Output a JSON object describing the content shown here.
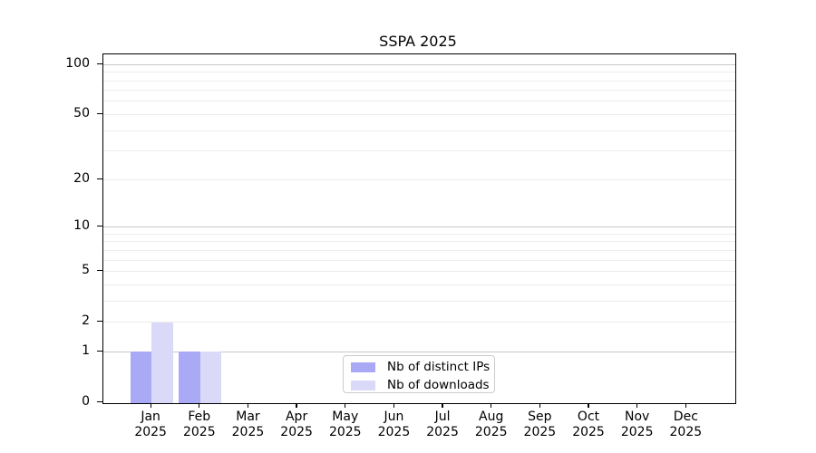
{
  "chart_data": {
    "type": "bar",
    "title": "SSPA 2025",
    "categories": [
      "Jan",
      "Feb",
      "Mar",
      "Apr",
      "May",
      "Jun",
      "Jul",
      "Aug",
      "Sep",
      "Oct",
      "Nov",
      "Dec"
    ],
    "category_year": "2025",
    "series": [
      {
        "name": "Nb of distinct IPs",
        "color": "#a9a9f5",
        "values": [
          1,
          1,
          0,
          0,
          0,
          0,
          0,
          0,
          0,
          0,
          0,
          0
        ]
      },
      {
        "name": "Nb of downloads",
        "color": "#dadaf8",
        "values": [
          2,
          1,
          0,
          0,
          0,
          0,
          0,
          0,
          0,
          0,
          0,
          0
        ]
      }
    ],
    "y_axis": {
      "scale": "log10(value+1)",
      "tick_labels": [
        100,
        50,
        20,
        10,
        5,
        2,
        1,
        0
      ],
      "major_grid_values": [
        1,
        10,
        100
      ],
      "minor_grid_values": [
        2,
        3,
        4,
        5,
        6,
        7,
        8,
        9,
        20,
        30,
        40,
        50,
        60,
        70,
        80,
        90
      ],
      "top_value": 115,
      "bottom_value": 0
    },
    "grid": {
      "major_color": "#c8c8c8",
      "minor_color": "#ececec"
    },
    "axis_color": "#000000",
    "legend": {
      "position": "lower center",
      "entries": [
        "Nb of distinct IPs",
        "Nb of downloads"
      ]
    }
  }
}
